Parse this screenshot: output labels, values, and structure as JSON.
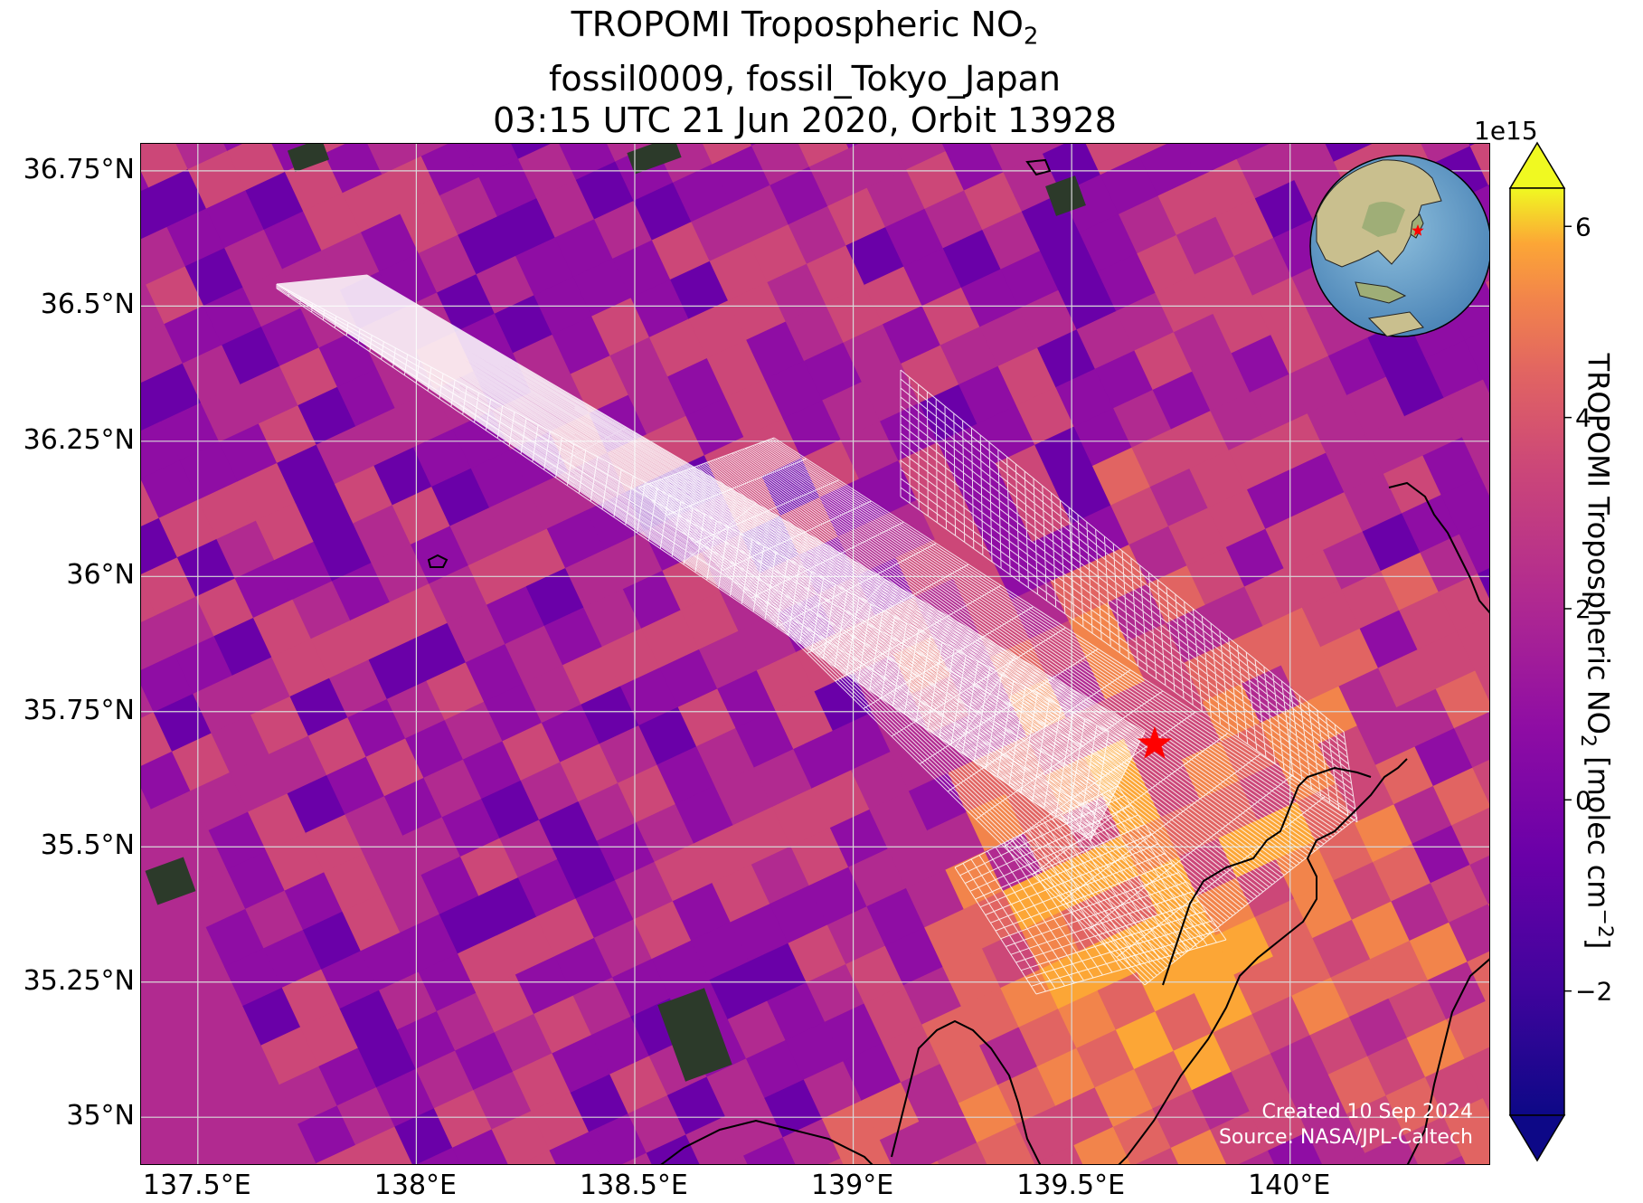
{
  "title": {
    "line1_main": "TROPOMI Tropospheric NO",
    "line1_sub": "2",
    "line2": "fossil0009, fossil_Tokyo_Japan",
    "line3": "03:15 UTC 21 Jun 2020, Orbit 13928"
  },
  "map": {
    "lon_range": [
      137.37,
      140.46
    ],
    "lat_range": [
      34.91,
      36.8
    ],
    "lon_ticks": [
      "137.5°E",
      "138°E",
      "138.5°E",
      "139°E",
      "139.5°E",
      "140°E"
    ],
    "lat_ticks": [
      "36.75°N",
      "36.5°N",
      "36.25°N",
      "36°N",
      "35.75°N",
      "35.5°N",
      "35.25°N",
      "35°N"
    ],
    "lon_tick_values": [
      137.5,
      138.0,
      138.5,
      139.0,
      139.5,
      140.0
    ],
    "lat_tick_values": [
      36.75,
      36.5,
      36.25,
      36.0,
      35.75,
      35.5,
      35.25,
      35.0
    ],
    "gridlines": true,
    "target_marker": {
      "lon": 139.69,
      "lat": 35.69,
      "color": "#ff0000",
      "shape": "star"
    },
    "colormap": "plasma",
    "overlay_color": "#ffffff",
    "coastline_color": "#000000"
  },
  "colorbar": {
    "label_main": "TROPOMI Tropospheric NO",
    "label_sub": "2",
    "label_units": " [molec cm",
    "label_exp": "−2",
    "label_close": "]",
    "exponent": "1e15",
    "vmin": -3.3,
    "vmax": 6.4,
    "extend": "both",
    "ticks": [
      {
        "value": -2,
        "label": "−2"
      },
      {
        "value": 0,
        "label": "0"
      },
      {
        "value": 2,
        "label": "2"
      },
      {
        "value": 4,
        "label": "4"
      },
      {
        "value": 6,
        "label": "6"
      }
    ]
  },
  "inset_globe": {
    "marker_color": "#ff0000"
  },
  "credits": {
    "line1": "Created 10 Sep 2024",
    "line2": "Source: NASA/JPL-Caltech"
  }
}
